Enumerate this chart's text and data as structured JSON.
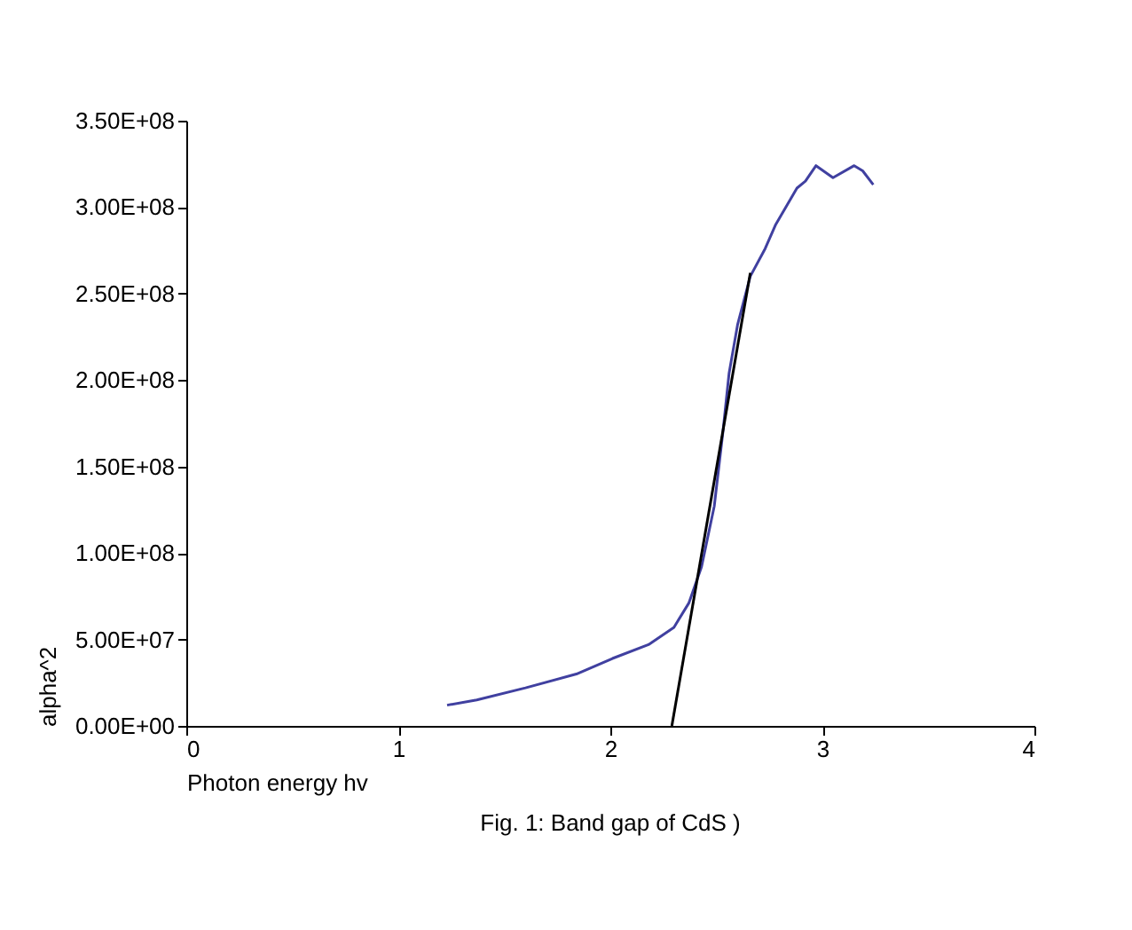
{
  "chart_data": {
    "type": "line",
    "xlabel": "Photon energy hv",
    "ylabel": "alpha^2",
    "annotations": [
      "Fig. 1:  Band gap of CdS )"
    ],
    "xlim": [
      0,
      4
    ],
    "xticks": [
      0,
      1,
      2,
      3,
      4
    ],
    "ylim": [
      0,
      350000000
    ],
    "yticks": [
      {
        "value": 0,
        "label": "0.00E+00"
      },
      {
        "value": 50000000,
        "label": "5.00E+07"
      },
      {
        "value": 100000000,
        "label": "1.00E+08"
      },
      {
        "value": 150000000,
        "label": "1.50E+08"
      },
      {
        "value": 200000000,
        "label": "2.00E+08"
      },
      {
        "value": 250000000,
        "label": "2.50E+08"
      },
      {
        "value": 300000000,
        "label": "3.00E+08"
      },
      {
        "value": 350000000,
        "label": "3.50E+08"
      }
    ],
    "grid": false,
    "marker": "none",
    "line_style": "solid",
    "series": [
      {
        "color": "#4040a0",
        "x": [
          1.23,
          1.37,
          1.6,
          1.84,
          2.01,
          2.18,
          2.3,
          2.37,
          2.43,
          2.49,
          2.53,
          2.56,
          2.6,
          2.66,
          2.73,
          2.78,
          2.88,
          2.92,
          2.97,
          3.05,
          3.15,
          3.19,
          3.24
        ],
        "values": [
          12000000,
          15000000,
          22000000,
          30000000,
          39000000,
          47000000,
          57000000,
          71000000,
          92000000,
          127000000,
          169000000,
          204000000,
          232000000,
          260000000,
          276000000,
          290000000,
          311000000,
          315000000,
          324000000,
          317000000,
          324000000,
          321000000,
          313000000
        ]
      },
      {
        "type": "line",
        "color": "#000000",
        "x": [
          2.29,
          2.66
        ],
        "values": [
          0,
          262000000
        ]
      }
    ]
  }
}
